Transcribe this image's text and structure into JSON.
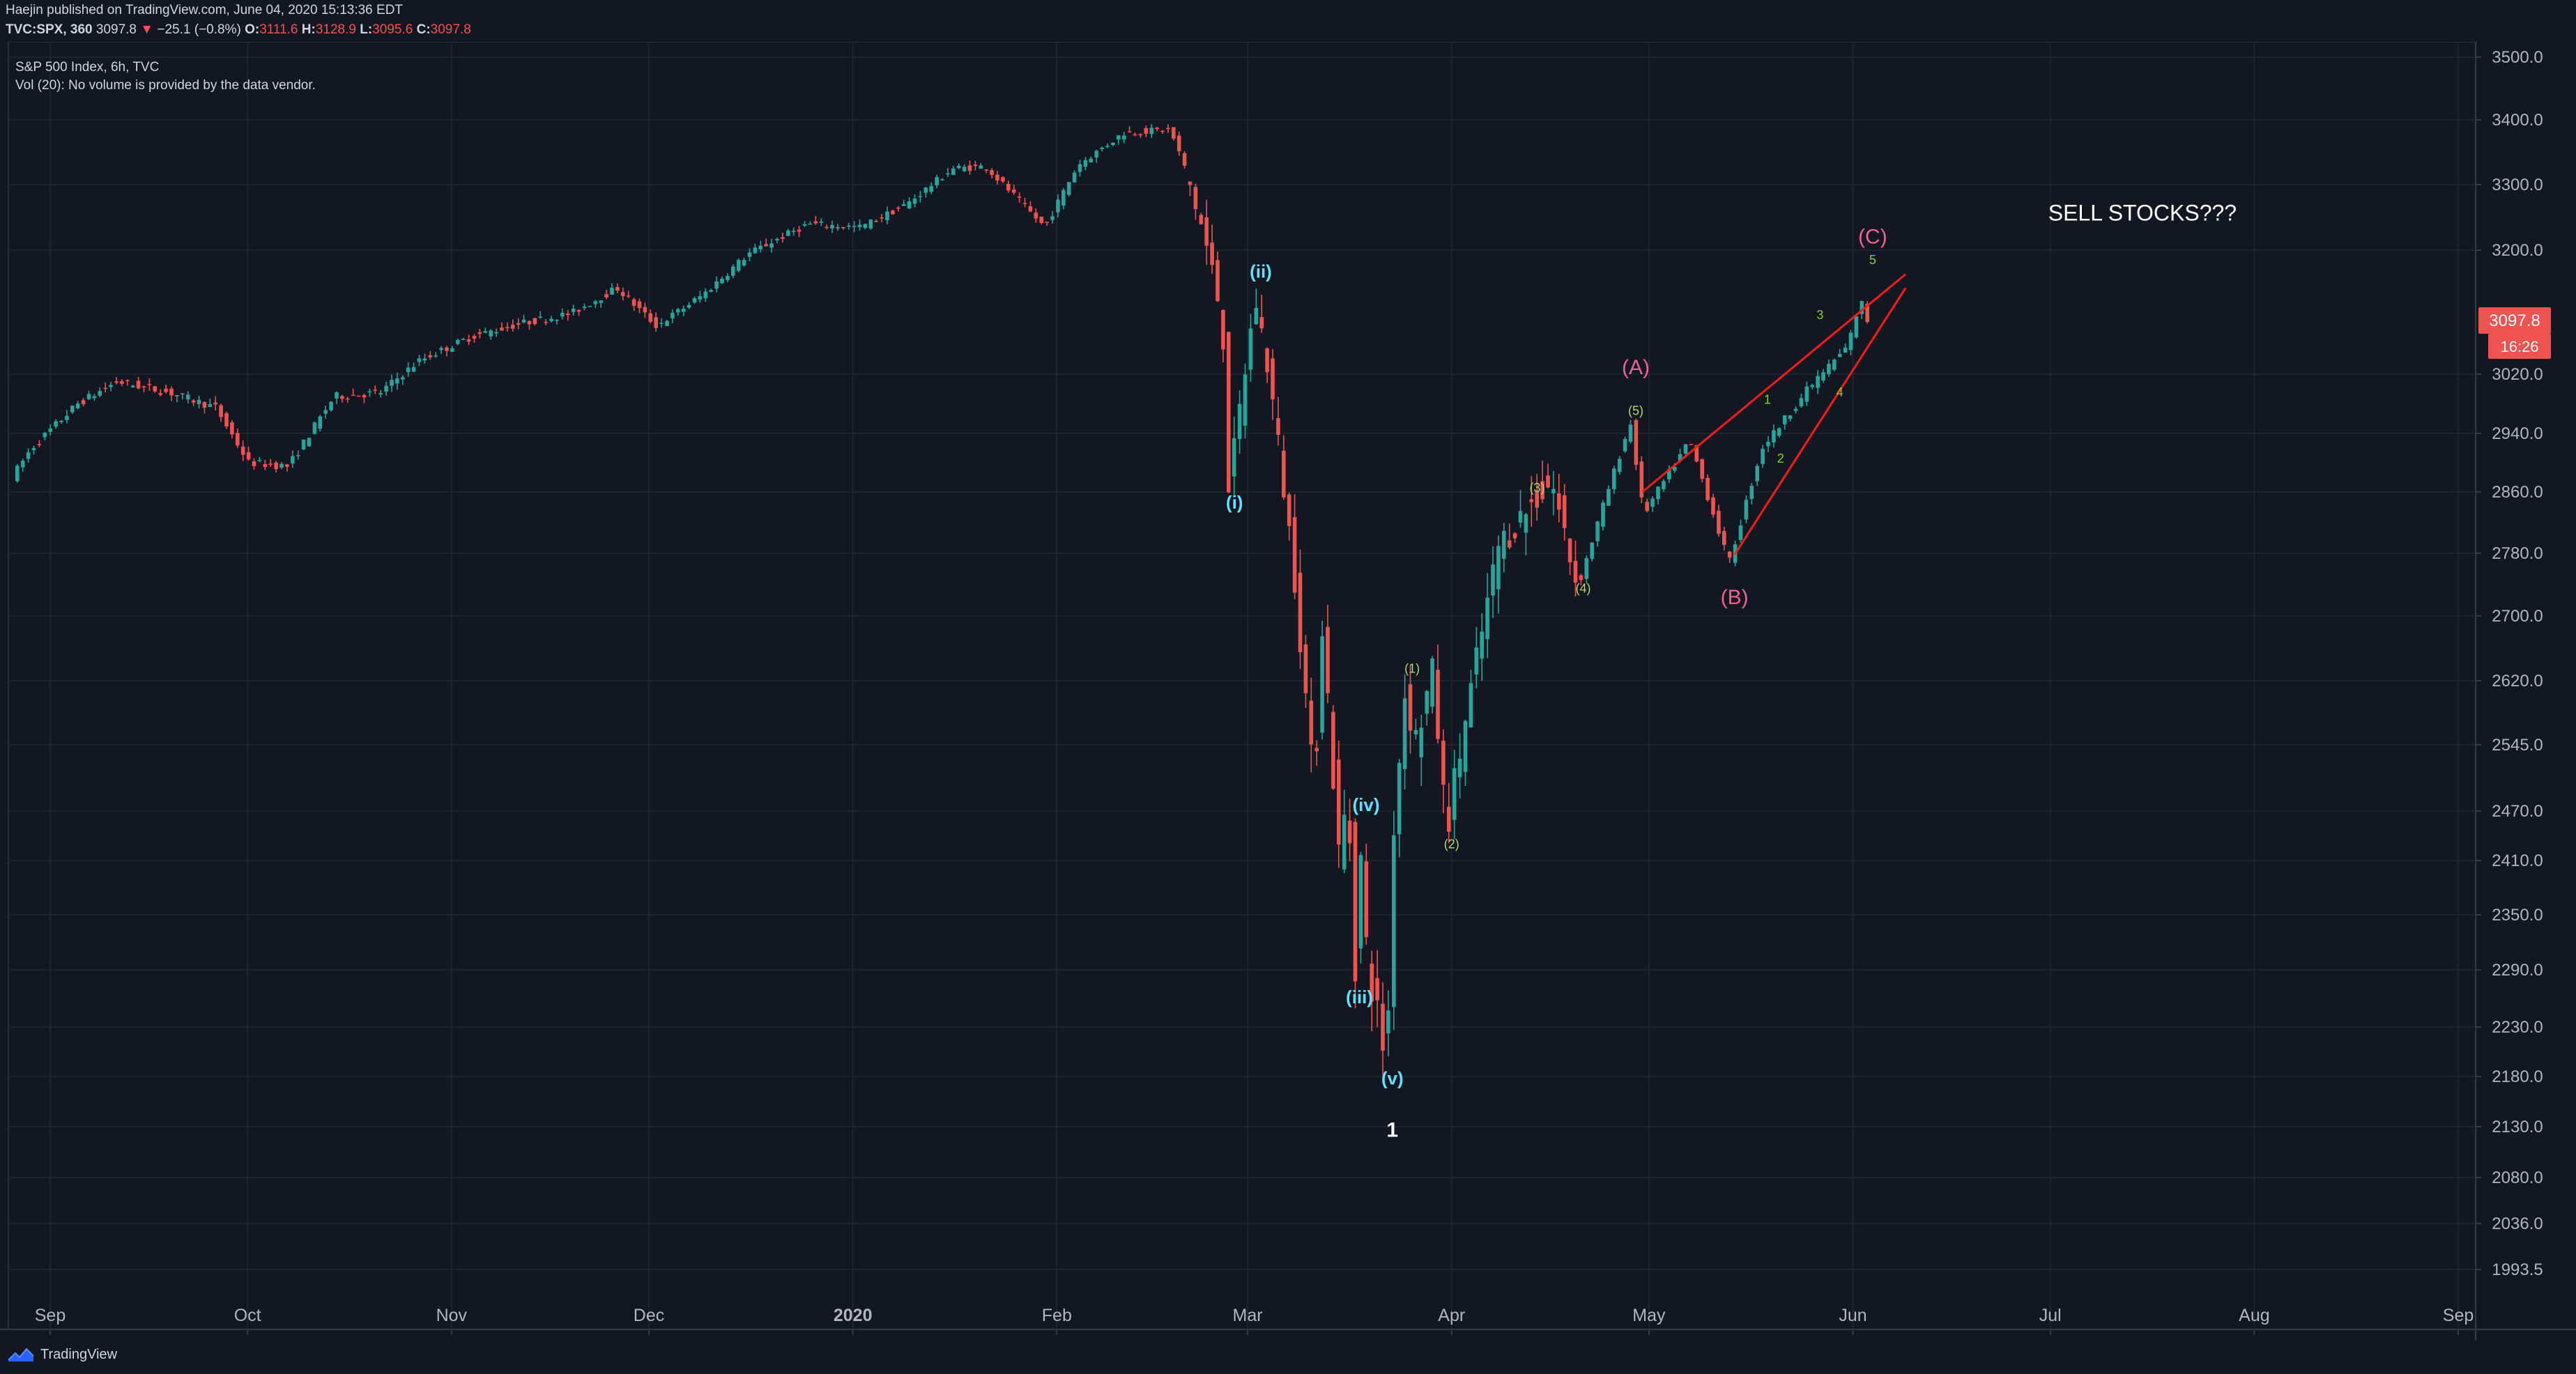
{
  "header": {
    "publisher_line": "Haejin published on TradingView.com, June 04, 2020 15:13:36 EDT",
    "symbol": "TVC:SPX, 360",
    "last": "3097.8",
    "change_arrow": "▼",
    "change": "−25.1 (−0.8%)",
    "open_label": "O:",
    "open": "3111.6",
    "high_label": "H:",
    "high": "3128.9",
    "low_label": "L:",
    "low": "3095.6",
    "close_label": "C:",
    "close": "3097.8"
  },
  "legend": {
    "title": "S&P 500 Index, 6h, TVC",
    "volume_note": "Vol (20): No volume is provided by the data vendor."
  },
  "price_badge": {
    "price": "3097.8",
    "countdown": "16:26"
  },
  "brand": {
    "name": "TradingView"
  },
  "colors": {
    "background": "#131722",
    "up": "#26a69a",
    "down": "#ef5350",
    "grid": "#242733",
    "wave_cyan": "#5ee2ff",
    "wave_pink": "#f06292",
    "wave_green": "#7ed321",
    "wave_olive": "#b2d56b",
    "trend_line": "#ff1a1a",
    "badge": "#ef5350"
  },
  "chart_data": {
    "type": "candlestick",
    "title": "S&P 500 Index, 6h, TVC",
    "y_ticks": [
      3500.0,
      3400.0,
      3300.0,
      3200.0,
      3020.0,
      2940.0,
      2860.0,
      2780.0,
      2700.0,
      2620.0,
      2545.0,
      2470.0,
      2410.0,
      2350.0,
      2290.0,
      2230.0,
      2180.0,
      2130.0,
      2080.0,
      2036.0,
      1993.5
    ],
    "x_ticks": [
      "Sep",
      "Oct",
      "Nov",
      "Dec",
      "2020",
      "Feb",
      "Mar",
      "Apr",
      "May",
      "Jun",
      "Jul",
      "Aug",
      "Sep"
    ],
    "path": [
      [
        "2019-08-27",
        2880
      ],
      [
        "2019-08-30",
        2920
      ],
      [
        "2019-09-06",
        2980
      ],
      [
        "2019-09-12",
        3010
      ],
      [
        "2019-09-20",
        2995
      ],
      [
        "2019-09-27",
        2975
      ],
      [
        "2019-10-02",
        2900
      ],
      [
        "2019-10-08",
        2895
      ],
      [
        "2019-10-15",
        2990
      ],
      [
        "2019-10-22",
        2995
      ],
      [
        "2019-10-28",
        3040
      ],
      [
        "2019-11-05",
        3075
      ],
      [
        "2019-11-13",
        3095
      ],
      [
        "2019-11-20",
        3108
      ],
      [
        "2019-11-27",
        3145
      ],
      [
        "2019-12-03",
        3090
      ],
      [
        "2019-12-10",
        3135
      ],
      [
        "2019-12-17",
        3195
      ],
      [
        "2019-12-26",
        3240
      ],
      [
        "2020-01-03",
        3235
      ],
      [
        "2020-01-10",
        3270
      ],
      [
        "2020-01-17",
        3325
      ],
      [
        "2020-01-22",
        3328
      ],
      [
        "2020-01-31",
        3235
      ],
      [
        "2020-02-05",
        3330
      ],
      [
        "2020-02-12",
        3380
      ],
      [
        "2020-02-19",
        3385
      ],
      [
        "2020-02-21",
        3335
      ],
      [
        "2020-02-24",
        3230
      ],
      [
        "2020-02-27",
        3100
      ],
      [
        "2020-02-28",
        2860
      ],
      [
        "2020-03-03",
        3130
      ],
      [
        "2020-03-05",
        3025
      ],
      [
        "2020-03-09",
        2750
      ],
      [
        "2020-03-12",
        2480
      ],
      [
        "2020-03-13",
        2710
      ],
      [
        "2020-03-16",
        2385
      ],
      [
        "2020-03-17",
        2530
      ],
      [
        "2020-03-18",
        2270
      ],
      [
        "2020-03-19",
        2415
      ],
      [
        "2020-03-20",
        2300
      ],
      [
        "2020-03-23",
        2191
      ],
      [
        "2020-03-24",
        2450
      ],
      [
        "2020-03-26",
        2630
      ],
      [
        "2020-03-27",
        2540
      ],
      [
        "2020-03-30",
        2630
      ],
      [
        "2020-04-01",
        2447
      ],
      [
        "2020-04-06",
        2660
      ],
      [
        "2020-04-09",
        2790
      ],
      [
        "2020-04-14",
        2845
      ],
      [
        "2020-04-17",
        2875
      ],
      [
        "2020-04-21",
        2736
      ],
      [
        "2020-04-29",
        2955
      ],
      [
        "2020-05-01",
        2830
      ],
      [
        "2020-05-08",
        2930
      ],
      [
        "2020-05-14",
        2766
      ],
      [
        "2020-05-19",
        2920
      ],
      [
        "2020-05-26",
        3000
      ],
      [
        "2020-06-01",
        3060
      ],
      [
        "2020-06-03",
        3128
      ],
      [
        "2020-06-04",
        3098
      ]
    ],
    "wave_labels": [
      {
        "text": "(i)",
        "date": "2020-02-28",
        "price": 2838,
        "color": "cyan"
      },
      {
        "text": "(ii)",
        "date": "2020-03-03",
        "price": 3160,
        "color": "cyan"
      },
      {
        "text": "(iii)",
        "date": "2020-03-18",
        "price": 2255,
        "color": "cyan"
      },
      {
        "text": "(iv)",
        "date": "2020-03-19",
        "price": 2470,
        "color": "cyan"
      },
      {
        "text": "(v)",
        "date": "2020-03-23",
        "price": 2172,
        "color": "cyan"
      },
      {
        "text": "1",
        "date": "2020-03-23",
        "price": 2120,
        "color": "white"
      },
      {
        "text": "(1)",
        "date": "2020-03-26",
        "price": 2630,
        "color": "olive"
      },
      {
        "text": "(2)",
        "date": "2020-04-01",
        "price": 2425,
        "color": "olive"
      },
      {
        "text": "(3)",
        "date": "2020-04-14",
        "price": 2860,
        "color": "olive"
      },
      {
        "text": "(4)",
        "date": "2020-04-21",
        "price": 2730,
        "color": "olive"
      },
      {
        "text": "(5)",
        "date": "2020-04-29",
        "price": 2965,
        "color": "olive"
      },
      {
        "text": "(A)",
        "date": "2020-04-29",
        "price": 3020,
        "color": "pink"
      },
      {
        "text": "(B)",
        "date": "2020-05-14",
        "price": 2715,
        "color": "pink"
      },
      {
        "text": "(C)",
        "date": "2020-06-04",
        "price": 3210,
        "color": "pink"
      },
      {
        "text": "1",
        "date": "2020-05-19",
        "price": 2980,
        "color": "green"
      },
      {
        "text": "2",
        "date": "2020-05-21",
        "price": 2900,
        "color": "green"
      },
      {
        "text": "3",
        "date": "2020-05-27",
        "price": 3100,
        "color": "green"
      },
      {
        "text": "4",
        "date": "2020-05-30",
        "price": 2990,
        "color": "green"
      },
      {
        "text": "5",
        "date": "2020-06-04",
        "price": 3180,
        "color": "green"
      }
    ],
    "trend_lines": [
      [
        [
          "2020-04-30",
          2860
        ],
        [
          "2020-06-09",
          3165
        ]
      ],
      [
        [
          "2020-05-14",
          2778
        ],
        [
          "2020-06-09",
          3145
        ]
      ]
    ],
    "annotation": {
      "text": "SELL STOCKS???",
      "date": "2020-07-15",
      "price": 3245
    }
  }
}
